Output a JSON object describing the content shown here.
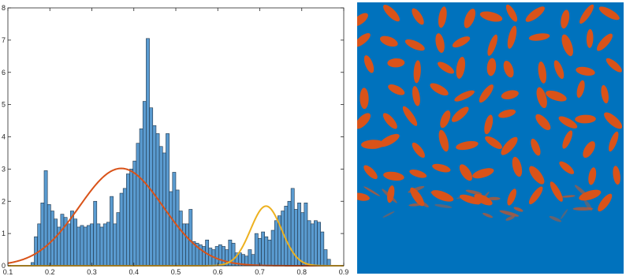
{
  "chart_data": [
    {
      "type": "bar",
      "title": "",
      "xlabel": "",
      "ylabel": "",
      "xlim": [
        0.1,
        0.9
      ],
      "ylim": [
        0,
        8
      ],
      "xticks": [
        "0.1",
        "0.2",
        "0.3",
        "0.4",
        "0.5",
        "0.6",
        "0.7",
        "0.8",
        "0.9"
      ],
      "yticks": [
        "0",
        "1",
        "2",
        "3",
        "4",
        "5",
        "6",
        "7",
        "8"
      ],
      "grid": false,
      "bin_width": 0.00784,
      "bin_start": 0.155,
      "values": [
        0.1,
        0.9,
        1.3,
        1.95,
        2.95,
        1.9,
        1.7,
        1.45,
        1.2,
        1.6,
        1.5,
        1.3,
        1.7,
        1.45,
        1.2,
        1.25,
        1.2,
        1.25,
        1.3,
        2.0,
        1.3,
        1.2,
        1.3,
        1.35,
        2.15,
        1.3,
        1.65,
        2.25,
        2.4,
        2.85,
        3.0,
        3.25,
        3.8,
        4.25,
        5.1,
        7.05,
        4.9,
        4.35,
        4.1,
        3.7,
        3.5,
        4.1,
        2.3,
        2.9,
        2.35,
        1.7,
        1.3,
        1.3,
        1.75,
        0.75,
        0.7,
        0.65,
        0.6,
        0.8,
        0.55,
        0.5,
        0.6,
        0.65,
        0.6,
        0.5,
        0.8,
        0.7,
        0.4,
        0.4,
        0.35,
        0.3,
        0.5,
        0.35,
        1.0,
        0.85,
        1.05,
        0.9,
        0.8,
        1.1,
        1.4,
        1.55,
        1.7,
        1.85,
        2.0,
        2.4,
        1.75,
        1.95,
        1.65,
        1.95,
        1.4,
        1.3,
        1.4,
        1.35,
        1.05,
        0.5,
        0.2
      ],
      "series": [
        {
          "kind": "gaussian",
          "amplitude": 3.02,
          "mean": 0.37,
          "sigma": 0.1,
          "color": "#d95319"
        },
        {
          "kind": "gaussian",
          "amplitude": 1.85,
          "mean": 0.715,
          "sigma": 0.037,
          "color": "#edb120"
        }
      ],
      "bar_color": "#5a9bd0",
      "bar_edge_color": "#1f3448"
    },
    {
      "type": "image",
      "description_colors": {
        "background": "#0072bd",
        "objects": "#d95319"
      }
    }
  ]
}
